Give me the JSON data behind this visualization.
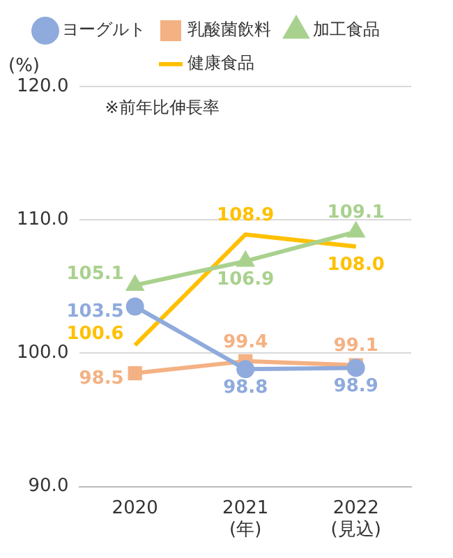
{
  "chart_data": {
    "type": "line",
    "ylabel": "(%)",
    "annotations": [
      "※前年比伸長率"
    ],
    "categories": [
      "2020",
      "2021\n(年)",
      "2022\n(見込)"
    ],
    "series": [
      {
        "name": "ヨーグルト",
        "color": "#8faadc",
        "marker": "circle",
        "values": [
          103.5,
          98.8,
          98.9
        ],
        "value_labels": [
          "103.5",
          "98.8",
          "98.9"
        ]
      },
      {
        "name": "乳酸菌飲料",
        "color": "#f4b183",
        "marker": "square",
        "values": [
          98.5,
          99.4,
          99.1
        ],
        "value_labels": [
          "98.5",
          "99.4",
          "99.1"
        ]
      },
      {
        "name": "加工食品",
        "color": "#a9d18e",
        "marker": "triangle",
        "values": [
          105.1,
          106.9,
          109.1
        ],
        "value_labels": [
          "105.1",
          "106.9",
          "109.1"
        ]
      },
      {
        "name": "健康食品",
        "color": "#ffc000",
        "marker": "none",
        "values": [
          100.6,
          108.9,
          108.0
        ],
        "value_labels": [
          "100.6",
          "108.9",
          "108.0"
        ]
      }
    ],
    "ylim": [
      90,
      120
    ],
    "yticks": [
      {
        "value": 90,
        "label": "90.0"
      },
      {
        "value": 100,
        "label": "100.0"
      },
      {
        "value": 110,
        "label": "110.0"
      },
      {
        "value": 120,
        "label": "120.0"
      }
    ],
    "grid": "y",
    "legend": "top"
  }
}
